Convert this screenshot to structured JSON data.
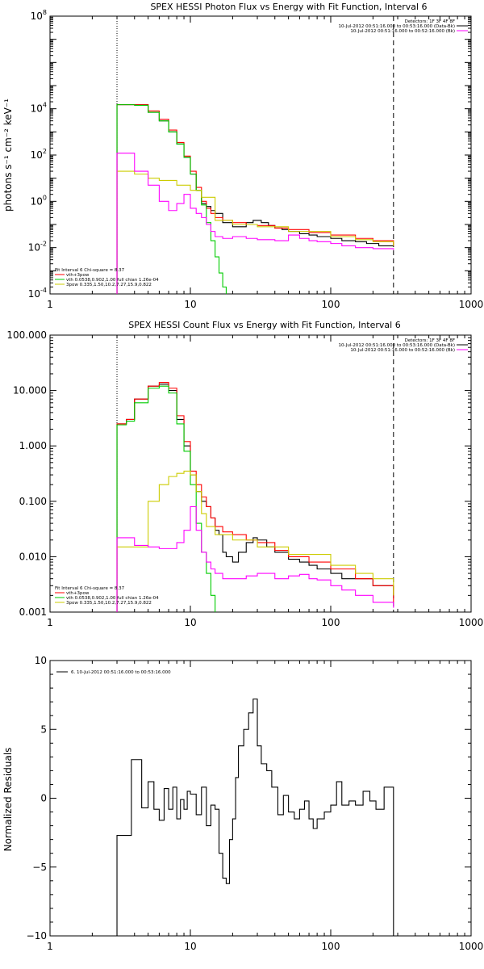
{
  "chart_data": [
    {
      "id": "photon",
      "type": "line",
      "title": "SPEX HESSI Photon Flux vs Energy with Fit Function, Interval 6",
      "xlabel": "",
      "ylabel": "photons s⁻¹ cm⁻² keV⁻¹",
      "xscale": "log",
      "yscale": "log",
      "xlim": [
        1,
        1000
      ],
      "ylim": [
        0.0001,
        100000000
      ],
      "xticks": [
        {
          "value": 1,
          "label": "1"
        },
        {
          "value": 10,
          "label": "10"
        },
        {
          "value": 100,
          "label": "100"
        },
        {
          "value": 1000,
          "label": "1000"
        }
      ],
      "yticks": [
        {
          "value": 0.0001,
          "base": "10",
          "exp": "-4"
        },
        {
          "value": 0.01,
          "base": "10",
          "exp": "-2"
        },
        {
          "value": 1,
          "base": "10",
          "exp": "0"
        },
        {
          "value": 100,
          "base": "10",
          "exp": "2"
        },
        {
          "value": 10000,
          "base": "10",
          "exp": "4"
        },
        {
          "value": 100000000,
          "base": "10",
          "exp": "8"
        }
      ],
      "vlines": [
        {
          "x": 3,
          "style": "dotted",
          "color": "#000000"
        },
        {
          "x": 280,
          "style": "dashed",
          "color": "#000000"
        }
      ],
      "legend_topright": [
        {
          "text": "Detectors: 1F 3F 4F 8F",
          "color": ""
        },
        {
          "text": "10-Jul-2012 00:51:16.000 to 00:53:16.000 (Data-Bk)",
          "color": "#000000"
        },
        {
          "text": "10-Jul-2012 00:51:16.000 to 00:52:16.000 (Bk)",
          "color": "#ff00ff"
        }
      ],
      "legend_bottomleft": [
        {
          "text": "Fit Interval 6   Chi-square = 8.37",
          "color": ""
        },
        {
          "text": "vth+3pow",
          "color": "#ff0000"
        },
        {
          "text": "vth 0.0538,0.902,1.00  full chian 1.26e-04",
          "color": "#00cc00"
        },
        {
          "text": "3pow 0.335,1.50,10.2,7.27,15.9,0.822",
          "color": "#cccc00"
        }
      ],
      "series": [
        {
          "name": "10-Jul-2012 00:51:16.000 to 00:53:16.000 (Data-Bk)",
          "color": "#000000",
          "x": [
            3,
            4,
            5,
            6,
            7,
            8,
            9,
            10,
            11,
            12,
            13,
            14,
            15,
            17,
            20,
            25,
            28,
            32,
            36,
            40,
            45,
            50,
            60,
            70,
            80,
            100,
            120,
            150,
            180,
            220,
            280
          ],
          "y": [
            15000,
            15000,
            7000,
            3000,
            1000,
            300,
            80,
            15,
            3,
            0.8,
            0.6,
            0.4,
            0.3,
            0.12,
            0.08,
            0.12,
            0.15,
            0.12,
            0.09,
            0.07,
            0.06,
            0.05,
            0.04,
            0.035,
            0.03,
            0.025,
            0.02,
            0.018,
            0.015,
            0.012,
            0.012
          ]
        },
        {
          "name": "vth+3pow",
          "color": "#ff0000",
          "x": [
            3,
            4,
            5,
            6,
            7,
            8,
            9,
            10,
            11,
            12,
            13,
            14,
            15,
            17,
            20,
            25,
            30,
            40,
            50,
            70,
            100,
            150,
            200,
            280
          ],
          "y": [
            15000,
            15000,
            8000,
            3500,
            1200,
            350,
            90,
            20,
            4,
            1.0,
            0.5,
            0.3,
            0.2,
            0.15,
            0.12,
            0.1,
            0.09,
            0.07,
            0.06,
            0.045,
            0.035,
            0.025,
            0.02,
            0.012
          ]
        },
        {
          "name": "vth 0.0538,0.902,1.00",
          "color": "#00cc00",
          "x": [
            3,
            4,
            5,
            6,
            7,
            8,
            9,
            10,
            11,
            12,
            13,
            14,
            15,
            16,
            17,
            18
          ],
          "y": [
            15000,
            14000,
            7000,
            3000,
            1000,
            300,
            80,
            15,
            3,
            0.7,
            0.12,
            0.02,
            0.004,
            0.0008,
            0.0002,
            5e-05
          ]
        },
        {
          "name": "3pow 0.335,1.50,10.2,7.27,15.9,0.822",
          "color": "#cccc00",
          "x": [
            3,
            4,
            5,
            6,
            8,
            10,
            12,
            15,
            20,
            30,
            50,
            100,
            150,
            200,
            280
          ],
          "y": [
            20,
            15,
            10,
            8,
            5,
            3,
            1.5,
            0.15,
            0.1,
            0.08,
            0.05,
            0.03,
            0.022,
            0.018,
            0.012
          ]
        },
        {
          "name": "10-Jul-2012 00:51:16.000 to 00:52:16.000 (Bk)",
          "color": "#ff00ff",
          "x": [
            3,
            4,
            5,
            6,
            7,
            8,
            9,
            10,
            11,
            12,
            13,
            14,
            15,
            17,
            20,
            25,
            30,
            40,
            50,
            60,
            70,
            80,
            100,
            120,
            150,
            200,
            280
          ],
          "y": [
            120,
            20,
            5,
            1.0,
            0.4,
            0.8,
            2,
            0.5,
            0.3,
            0.2,
            0.1,
            0.05,
            0.03,
            0.025,
            0.03,
            0.025,
            0.022,
            0.02,
            0.035,
            0.025,
            0.02,
            0.018,
            0.015,
            0.012,
            0.01,
            0.009,
            0.008
          ]
        }
      ]
    },
    {
      "id": "count",
      "type": "line",
      "title": "SPEX HESSI Count Flux vs Energy with Fit Function, Interval 6",
      "xlabel": "",
      "ylabel": "",
      "xscale": "log",
      "yscale": "log",
      "xlim": [
        1,
        1000
      ],
      "ylim": [
        0.001,
        100
      ],
      "xticks": [
        {
          "value": 1,
          "label": "1"
        },
        {
          "value": 10,
          "label": "10"
        },
        {
          "value": 100,
          "label": "100"
        },
        {
          "value": 1000,
          "label": "1000"
        }
      ],
      "yticks": [
        {
          "value": 0.001,
          "label": "0.001"
        },
        {
          "value": 0.01,
          "label": "0.010"
        },
        {
          "value": 0.1,
          "label": "0.100"
        },
        {
          "value": 1,
          "label": "1.000"
        },
        {
          "value": 10,
          "label": "10.000"
        },
        {
          "value": 100,
          "label": "100.000"
        }
      ],
      "vlines": [
        {
          "x": 3,
          "style": "dotted",
          "color": "#000000"
        },
        {
          "x": 280,
          "style": "dashed",
          "color": "#000000"
        }
      ],
      "legend_topright": [
        {
          "text": "Detectors: 1F 3F 4F 8F",
          "color": ""
        },
        {
          "text": "10-Jul-2012 00:51:16.000 to 00:53:16.000 (Data-Bk)",
          "color": "#000000"
        },
        {
          "text": "10-Jul-2012 00:51:16.000 to 00:52:16.000 (Bk)",
          "color": "#ff00ff"
        }
      ],
      "legend_bottomleft": [
        {
          "text": "Fit Interval 6   Chi-square = 8.37",
          "color": ""
        },
        {
          "text": "vth+3pow",
          "color": "#ff0000"
        },
        {
          "text": "vth 0.0538,0.902,1.00  full chian 1.26e-04",
          "color": "#00cc00"
        },
        {
          "text": "3pow 0.335,1.50,10.2,7.27,15.9,0.822",
          "color": "#cccc00"
        }
      ],
      "series": [
        {
          "name": "10-Jul-2012 00:51:16.000 to 00:53:16.000 (Data-Bk)",
          "color": "#000000",
          "x": [
            3,
            3.5,
            4,
            5,
            6,
            7,
            8,
            9,
            10,
            11,
            12,
            13,
            14,
            15,
            16,
            17,
            18,
            20,
            22,
            25,
            28,
            30,
            35,
            40,
            50,
            60,
            70,
            80,
            90,
            100,
            120,
            150,
            200,
            280
          ],
          "y": [
            2.5,
            3,
            7,
            12,
            13,
            10,
            3,
            1,
            0.3,
            0.15,
            0.1,
            0.08,
            0.05,
            0.03,
            0.025,
            0.012,
            0.01,
            0.008,
            0.012,
            0.018,
            0.022,
            0.02,
            0.015,
            0.012,
            0.009,
            0.008,
            0.007,
            0.006,
            0.006,
            0.005,
            0.004,
            0.004,
            0.003,
            0.002
          ]
        },
        {
          "name": "vth+3pow",
          "color": "#ff0000",
          "x": [
            3,
            3.5,
            4,
            5,
            6,
            7,
            8,
            9,
            10,
            11,
            12,
            13,
            14,
            15,
            17,
            20,
            25,
            30,
            40,
            50,
            70,
            100,
            150,
            200,
            280
          ],
          "y": [
            2.5,
            3,
            7,
            12,
            14,
            11,
            3.5,
            1.2,
            0.35,
            0.2,
            0.12,
            0.08,
            0.05,
            0.035,
            0.028,
            0.025,
            0.02,
            0.018,
            0.013,
            0.01,
            0.008,
            0.006,
            0.004,
            0.003,
            0.0015
          ]
        },
        {
          "name": "vth 0.0538,0.902,1.00",
          "color": "#00cc00",
          "x": [
            3,
            3.5,
            4,
            5,
            6,
            7,
            8,
            9,
            10,
            11,
            12,
            13,
            14,
            15
          ],
          "y": [
            2.4,
            2.8,
            6,
            11,
            12,
            9,
            2.5,
            0.8,
            0.2,
            0.04,
            0.012,
            0.005,
            0.002,
            0.001
          ]
        },
        {
          "name": "3pow 0.335,1.50,10.2,7.27,15.9,0.822",
          "color": "#cccc00",
          "x": [
            3,
            4,
            5,
            6,
            7,
            8,
            9,
            10,
            11,
            12,
            13,
            15,
            20,
            30,
            50,
            100,
            150,
            200,
            280
          ],
          "y": [
            0.015,
            0.015,
            0.1,
            0.2,
            0.28,
            0.32,
            0.35,
            0.3,
            0.15,
            0.06,
            0.035,
            0.025,
            0.02,
            0.015,
            0.011,
            0.007,
            0.005,
            0.004,
            0.002
          ]
        },
        {
          "name": "10-Jul-2012 00:51:16.000 to 00:52:16.000 (Bk)",
          "color": "#ff00ff",
          "x": [
            3,
            4,
            5,
            6,
            7,
            8,
            9,
            10,
            11,
            12,
            13,
            14,
            15,
            17,
            20,
            25,
            30,
            40,
            50,
            60,
            70,
            80,
            100,
            120,
            150,
            200,
            280
          ],
          "y": [
            0.022,
            0.016,
            0.015,
            0.014,
            0.014,
            0.018,
            0.03,
            0.08,
            0.03,
            0.012,
            0.008,
            0.006,
            0.005,
            0.004,
            0.004,
            0.0045,
            0.005,
            0.004,
            0.0045,
            0.0048,
            0.004,
            0.0038,
            0.003,
            0.0025,
            0.002,
            0.0015,
            0.0012
          ]
        }
      ]
    },
    {
      "id": "resid",
      "type": "line",
      "title": "",
      "xlabel": "",
      "ylabel": "Normalized Residuals",
      "xscale": "log",
      "yscale": "linear",
      "xlim": [
        1,
        1000
      ],
      "ylim": [
        -10,
        10
      ],
      "xticks": [
        {
          "value": 1,
          "label": "1"
        },
        {
          "value": 10,
          "label": "10"
        },
        {
          "value": 100,
          "label": "100"
        },
        {
          "value": 1000,
          "label": "1000"
        }
      ],
      "yticks": [
        {
          "value": -10,
          "label": "−10"
        },
        {
          "value": -5,
          "label": "−5"
        },
        {
          "value": 0,
          "label": "0"
        },
        {
          "value": 5,
          "label": "5"
        },
        {
          "value": 10,
          "label": "10"
        }
      ],
      "vlines": [],
      "legend_topleft": [
        {
          "text": "6. 10-Jul-2012 00:51:16.000 to 00:53:16.000",
          "color": "#000000"
        }
      ],
      "series": [
        {
          "name": "6. 10-Jul-2012 00:51:16.000 to 00:53:16.000",
          "color": "#000000",
          "x": [
            3,
            3.8,
            4.5,
            5,
            5.5,
            6,
            6.5,
            7,
            7.5,
            8,
            8.5,
            9,
            9.5,
            10,
            11,
            12,
            13,
            14,
            15,
            16,
            17,
            18,
            19,
            20,
            21,
            22,
            24,
            26,
            28,
            30,
            32,
            35,
            38,
            42,
            46,
            50,
            55,
            60,
            65,
            70,
            75,
            80,
            90,
            100,
            110,
            120,
            135,
            150,
            170,
            190,
            210,
            240,
            280
          ],
          "y": [
            -2.7,
            2.8,
            -0.7,
            1.2,
            -0.8,
            -1.6,
            0.7,
            -0.8,
            0.8,
            -1.5,
            -0.1,
            -0.8,
            0.5,
            0.3,
            -1.2,
            0.8,
            -2.0,
            -0.5,
            -0.8,
            -4.0,
            -5.8,
            -6.2,
            -3.0,
            -1.5,
            1.5,
            3.8,
            5.0,
            6.2,
            7.2,
            3.8,
            2.5,
            2.0,
            0.8,
            -1.2,
            0.2,
            -1.0,
            -1.5,
            -0.8,
            -0.2,
            -1.5,
            -2.2,
            -1.5,
            -1.0,
            -0.5,
            1.2,
            -0.5,
            -0.2,
            -0.5,
            0.5,
            -0.2,
            -0.8,
            0.8,
            -9.9
          ]
        }
      ]
    }
  ]
}
